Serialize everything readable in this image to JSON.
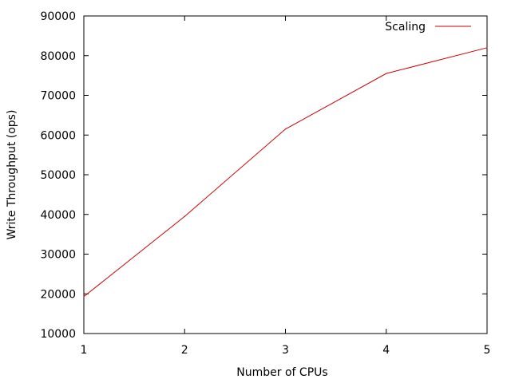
{
  "chart_data": {
    "type": "line",
    "title": "",
    "xlabel": "Number of CPUs",
    "ylabel": "Write Throughput (ops)",
    "xlim": [
      1,
      5
    ],
    "ylim": [
      10000,
      90000
    ],
    "x_ticks": [
      1,
      2,
      3,
      4,
      5
    ],
    "y_ticks": [
      10000,
      20000,
      30000,
      40000,
      50000,
      60000,
      70000,
      80000,
      90000
    ],
    "grid": false,
    "legend_position": "top-right",
    "x": [
      1,
      2,
      3,
      4,
      5
    ],
    "series": [
      {
        "name": "Scaling",
        "color": "#cc0000",
        "values": [
          19300,
          39500,
          61500,
          75500,
          82000
        ]
      }
    ]
  }
}
